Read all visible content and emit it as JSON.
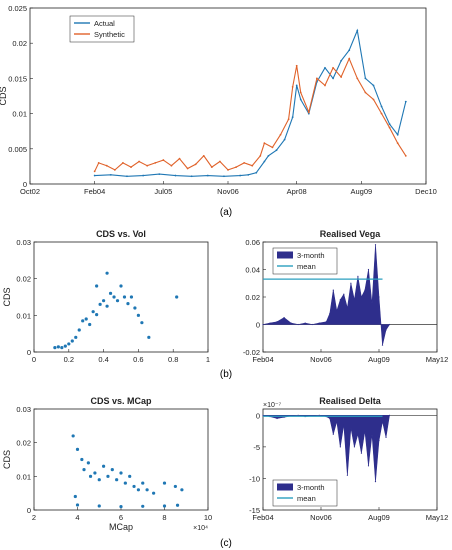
{
  "panel_labels": [
    "(a)",
    "(b)",
    "(c)"
  ],
  "chart_data": [
    {
      "id": "a",
      "type": "line",
      "title": "",
      "xlabel": "",
      "ylabel": "CDS",
      "x_ticks": [
        "Oct02",
        "Feb04",
        "Jul05",
        "Nov06",
        "Apr08",
        "Aug09",
        "Dec10"
      ],
      "xlim": [
        "Oct02",
        "Dec10"
      ],
      "ylim": [
        0,
        0.025
      ],
      "y_ticks": [
        "0",
        "0.005",
        "0.01",
        "0.015",
        "0.02",
        "0.025"
      ],
      "legend_position": "top-left",
      "series": [
        {
          "name": "Actual",
          "color": "#1f77b4",
          "x": [
            "Feb04",
            "Jun04",
            "Oct04",
            "Feb05",
            "Jun05",
            "Oct05",
            "Feb06",
            "Jun06",
            "Oct06",
            "Feb07",
            "Apr07",
            "Jun07",
            "Aug07",
            "Sep07",
            "Nov07",
            "Jan08",
            "Mar08",
            "Apr08",
            "May08",
            "Jul08",
            "Sep08",
            "Nov08",
            "Jan09",
            "Mar09",
            "May09",
            "Jul09",
            "Sep09",
            "Nov09",
            "Jan10",
            "Mar10",
            "May10",
            "Jul10"
          ],
          "values": [
            0.0012,
            0.0013,
            0.0011,
            0.0012,
            0.0014,
            0.0012,
            0.0011,
            0.0012,
            0.0011,
            0.0012,
            0.0013,
            0.0016,
            0.0032,
            0.004,
            0.0048,
            0.0063,
            0.0095,
            0.014,
            0.012,
            0.01,
            0.0145,
            0.0165,
            0.015,
            0.0175,
            0.019,
            0.0218,
            0.015,
            0.014,
            0.011,
            0.0085,
            0.007,
            0.0117
          ]
        },
        {
          "name": "Synthetic",
          "color": "#e0622a",
          "x": [
            "Feb04",
            "Mar04",
            "May04",
            "Jul04",
            "Sep04",
            "Nov04",
            "Jan05",
            "Mar05",
            "May05",
            "Jul05",
            "Sep05",
            "Nov05",
            "Jan06",
            "Mar06",
            "May06",
            "Jul06",
            "Sep06",
            "Nov06",
            "Jan07",
            "Mar07",
            "May07",
            "Jul07",
            "Aug07",
            "Oct07",
            "Dec07",
            "Feb08",
            "Mar08",
            "Apr08",
            "May08",
            "Jul08",
            "Sep08",
            "Nov08",
            "Jan09",
            "Mar09",
            "May09",
            "Jul09",
            "Sep09",
            "Nov09",
            "Jan10",
            "Mar10",
            "May10",
            "Jul10"
          ],
          "values": [
            0.0018,
            0.003,
            0.0026,
            0.002,
            0.003,
            0.0024,
            0.0032,
            0.0026,
            0.003,
            0.0034,
            0.0026,
            0.0036,
            0.0022,
            0.0028,
            0.004,
            0.0024,
            0.0032,
            0.002,
            0.0024,
            0.003,
            0.0026,
            0.004,
            0.0058,
            0.0052,
            0.007,
            0.0092,
            0.0138,
            0.0168,
            0.013,
            0.0102,
            0.015,
            0.014,
            0.0165,
            0.0152,
            0.0178,
            0.015,
            0.013,
            0.012,
            0.01,
            0.008,
            0.0058,
            0.004
          ]
        }
      ]
    },
    {
      "id": "b-left",
      "type": "scatter",
      "title": "CDS vs. Vol",
      "xlabel": "",
      "ylabel": "CDS",
      "xlim": [
        0,
        1
      ],
      "ylim": [
        0,
        0.03
      ],
      "x_ticks": [
        "0",
        "0.2",
        "0.4",
        "0.6",
        "0.8",
        "1"
      ],
      "y_ticks": [
        "0",
        "0.01",
        "0.02",
        "0.03"
      ],
      "color": "#1f77b4",
      "points": [
        [
          0.12,
          0.0012
        ],
        [
          0.14,
          0.0014
        ],
        [
          0.16,
          0.0012
        ],
        [
          0.18,
          0.0016
        ],
        [
          0.2,
          0.0022
        ],
        [
          0.22,
          0.003
        ],
        [
          0.24,
          0.004
        ],
        [
          0.26,
          0.006
        ],
        [
          0.28,
          0.0085
        ],
        [
          0.3,
          0.009
        ],
        [
          0.32,
          0.0075
        ],
        [
          0.34,
          0.011
        ],
        [
          0.36,
          0.0102
        ],
        [
          0.38,
          0.013
        ],
        [
          0.4,
          0.014
        ],
        [
          0.42,
          0.0125
        ],
        [
          0.44,
          0.016
        ],
        [
          0.46,
          0.015
        ],
        [
          0.48,
          0.014
        ],
        [
          0.5,
          0.018
        ],
        [
          0.52,
          0.015
        ],
        [
          0.54,
          0.0132
        ],
        [
          0.56,
          0.015
        ],
        [
          0.58,
          0.012
        ],
        [
          0.6,
          0.01
        ],
        [
          0.62,
          0.008
        ],
        [
          0.66,
          0.004
        ],
        [
          0.82,
          0.015
        ],
        [
          0.42,
          0.0215
        ],
        [
          0.36,
          0.018
        ]
      ]
    },
    {
      "id": "b-right",
      "type": "area",
      "title": "Realised Vega",
      "xlabel": "",
      "ylabel": "",
      "xlim": [
        "Feb04",
        "May12"
      ],
      "ylim": [
        -0.02,
        0.06
      ],
      "x_ticks": [
        "Feb04",
        "Nov06",
        "Aug09",
        "May12"
      ],
      "y_ticks": [
        "-0.02",
        "0",
        "0.02",
        "0.04",
        "0.06"
      ],
      "legend_position": "top-left",
      "mean_value": 0.033,
      "mean_x_range": [
        "Feb04",
        "Oct09"
      ],
      "series": [
        {
          "name": "3-month",
          "color": "#2e2e8c",
          "x": [
            "Feb04",
            "Jun04",
            "Oct04",
            "Feb05",
            "Jun05",
            "Oct05",
            "Feb06",
            "Jun06",
            "Oct06",
            "Feb07",
            "Apr07",
            "Jun07",
            "Aug07",
            "Oct07",
            "Dec07",
            "Feb08",
            "Apr08",
            "Jun08",
            "Aug08",
            "Oct08",
            "Dec08",
            "Feb09",
            "Apr09",
            "Jun09",
            "Aug09",
            "Oct09",
            "Dec09",
            "Feb10"
          ],
          "values": [
            0.0,
            0.001,
            0.002,
            0.005,
            0.001,
            0.0,
            0.001,
            0.0,
            0.001,
            0.002,
            0.008,
            0.025,
            0.01,
            0.018,
            0.022,
            0.012,
            0.03,
            0.018,
            0.035,
            0.02,
            0.025,
            0.04,
            0.015,
            0.058,
            0.02,
            -0.015,
            -0.004,
            0.0
          ]
        },
        {
          "name": "mean",
          "color": "#2a9fbf"
        }
      ]
    },
    {
      "id": "c-left",
      "type": "scatter",
      "title": "CDS vs. MCap",
      "xlabel": "MCap",
      "ylabel": "CDS",
      "x_exponent": "×10⁴",
      "xlim": [
        2,
        10
      ],
      "ylim": [
        0,
        0.03
      ],
      "x_ticks": [
        "2",
        "4",
        "6",
        "8",
        "10"
      ],
      "y_ticks": [
        "0",
        "0.01",
        "0.02",
        "0.03"
      ],
      "color": "#1f77b4",
      "points": [
        [
          3.8,
          0.022
        ],
        [
          4.0,
          0.018
        ],
        [
          4.2,
          0.015
        ],
        [
          4.3,
          0.012
        ],
        [
          4.5,
          0.014
        ],
        [
          4.6,
          0.01
        ],
        [
          4.8,
          0.011
        ],
        [
          5.0,
          0.009
        ],
        [
          5.2,
          0.013
        ],
        [
          5.4,
          0.01
        ],
        [
          5.6,
          0.012
        ],
        [
          5.8,
          0.009
        ],
        [
          6.0,
          0.011
        ],
        [
          6.2,
          0.008
        ],
        [
          6.4,
          0.01
        ],
        [
          6.6,
          0.007
        ],
        [
          6.8,
          0.006
        ],
        [
          7.0,
          0.008
        ],
        [
          7.2,
          0.006
        ],
        [
          7.5,
          0.005
        ],
        [
          8.0,
          0.008
        ],
        [
          8.5,
          0.007
        ],
        [
          8.8,
          0.006
        ],
        [
          4.0,
          0.0015
        ],
        [
          5.0,
          0.0012
        ],
        [
          6.0,
          0.001
        ],
        [
          7.0,
          0.0011
        ],
        [
          8.0,
          0.0012
        ],
        [
          8.6,
          0.0014
        ],
        [
          3.9,
          0.004
        ]
      ]
    },
    {
      "id": "c-right",
      "type": "area",
      "title": "Realised Delta",
      "xlabel": "",
      "ylabel": "",
      "y_exponent": "×10⁻⁷",
      "xlim": [
        "Feb04",
        "May12"
      ],
      "ylim": [
        -15,
        1
      ],
      "x_ticks": [
        "Feb04",
        "Nov06",
        "Aug09",
        "May12"
      ],
      "y_ticks": [
        "-15",
        "-10",
        "-5",
        "0"
      ],
      "legend_position": "bottom-left",
      "mean_value": -0.15,
      "mean_x_range": [
        "Feb04",
        "Oct09"
      ],
      "series": [
        {
          "name": "3-month",
          "color": "#2e2e8c",
          "x": [
            "Feb04",
            "Jun04",
            "Oct04",
            "Feb05",
            "Jun05",
            "Oct05",
            "Feb06",
            "Jun06",
            "Oct06",
            "Feb07",
            "Apr07",
            "Jun07",
            "Aug07",
            "Oct07",
            "Dec07",
            "Feb08",
            "Apr08",
            "Jun08",
            "Aug08",
            "Oct08",
            "Dec08",
            "Feb09",
            "Apr09",
            "Jun09",
            "Aug09",
            "Oct09",
            "Dec09",
            "Feb10"
          ],
          "values": [
            0.0,
            -0.2,
            -0.5,
            -0.3,
            -0.1,
            0.0,
            -0.2,
            -0.1,
            0.0,
            -0.2,
            -0.5,
            -3.0,
            -1.0,
            -5.0,
            -1.5,
            -9.5,
            -2.0,
            -5.0,
            -3.0,
            -6.0,
            -2.5,
            -8.0,
            -3.0,
            -10.5,
            -4.0,
            -1.0,
            -3.5,
            0.0
          ]
        },
        {
          "name": "mean",
          "color": "#2a9fbf"
        }
      ]
    }
  ]
}
